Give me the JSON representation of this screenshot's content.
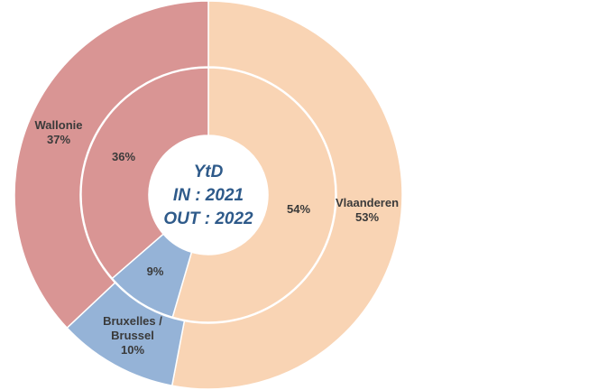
{
  "chart_data": {
    "type": "donut",
    "center_text": [
      "YtD",
      "IN : 2021",
      "OUT : 2022"
    ],
    "categories": [
      "Vlaanderen",
      "Bruxelles / Brussel",
      "Wallonie"
    ],
    "colors": [
      "#f9d4b4",
      "#95b3d7",
      "#d99594"
    ],
    "series": [
      {
        "values": [
          53,
          10,
          37
        ]
      },
      {
        "values": [
          54,
          9,
          36
        ]
      }
    ],
    "labels": {
      "outer": [
        {
          "name_lines": [
            "Vlaanderen"
          ],
          "pct": "53%"
        },
        {
          "name_lines": [
            "Bruxelles /",
            "Brussel"
          ],
          "pct": "10%"
        },
        {
          "name_lines": [
            "Wallonie"
          ],
          "pct": "37%"
        }
      ],
      "inner": [
        "54%",
        "9%",
        "36%"
      ]
    }
  }
}
